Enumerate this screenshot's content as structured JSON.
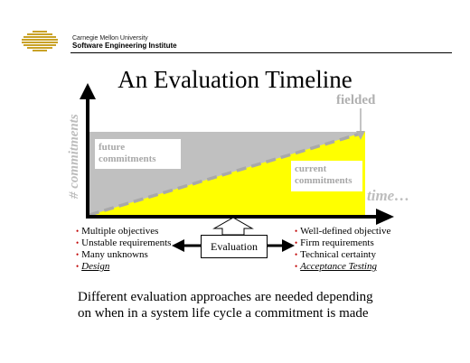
{
  "header": {
    "institution": "Carnegie Mellon University",
    "institute": "Software Engineering Institute",
    "logo_icon": "sei-striped-logo",
    "logo_color": "#c9a227"
  },
  "title": "An Evaluation Timeline",
  "diagram": {
    "y_axis_label": "# commitments",
    "x_axis_label": "time…",
    "fielded_label": "fielded",
    "future_label": [
      "future",
      "commitments"
    ],
    "current_label": [
      "current",
      "commitments"
    ],
    "evaluation_label": "Evaluation",
    "colors": {
      "future_region": "#c0c0c0",
      "current_region": "#ffff00",
      "axis_labels": "#bdbdbd",
      "bullet": "#c00000"
    }
  },
  "left_list": [
    "Multiple objectives",
    "Unstable requirements",
    "Many unknowns",
    "Design"
  ],
  "right_list": [
    "Well-defined objective",
    "Firm requirements",
    "Technical certainty",
    "Acceptance Testing"
  ],
  "caption": [
    "Different evaluation approaches are needed depending",
    "on when in a system life cycle a commitment is made"
  ]
}
